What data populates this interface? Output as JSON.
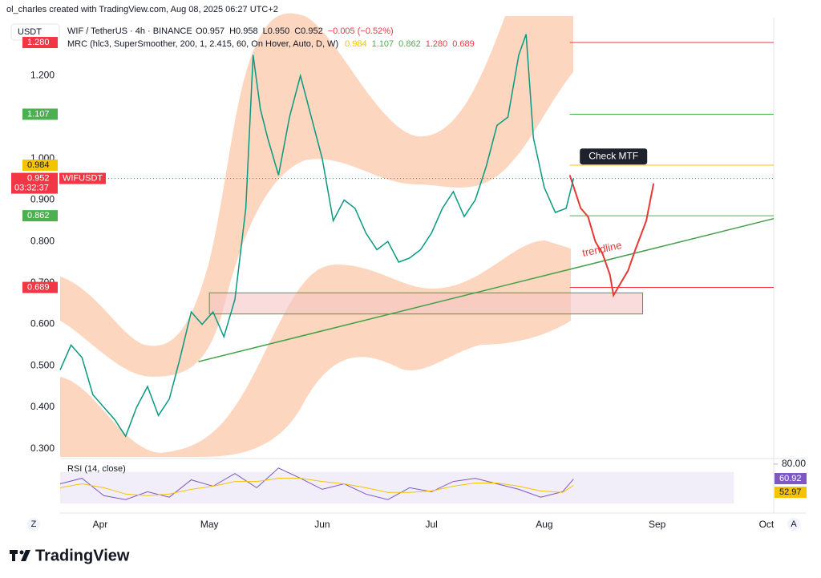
{
  "header": {
    "watermark": "ol_charles created with TradingView.com, Aug 08, 2025 06:27 UTC+2",
    "currency": "USDT",
    "symbol": "WIF / TetherUS · 4h · BINANCE",
    "ohlc": [
      "O0.957",
      "H0.958",
      "L0.950",
      "C0.952",
      "−0.005 (−0.52%)"
    ],
    "indicator": "MRC (hlc3, SuperSmoother, 200, 1, 2.415, 60, On Hover, Auto, D, W)",
    "indicator_values": [
      "0.984",
      "1.107",
      "0.862",
      "1.280",
      "0.689"
    ]
  },
  "chart_data": {
    "type": "line",
    "xlim": [
      0,
      196
    ],
    "xticks": [
      {
        "value": 11,
        "label": "Apr"
      },
      {
        "value": 41,
        "label": "May"
      },
      {
        "value": 72,
        "label": "Jun"
      },
      {
        "value": 102,
        "label": "Jul"
      },
      {
        "value": 133,
        "label": "Aug"
      },
      {
        "value": 164,
        "label": "Sep"
      },
      {
        "value": 194,
        "label": "Oct"
      }
    ],
    "ylim": [
      0.28,
      1.34
    ],
    "yticks": [
      {
        "value": 0.3,
        "label": "0.300"
      },
      {
        "value": 0.4,
        "label": "0.400"
      },
      {
        "value": 0.5,
        "label": "0.500"
      },
      {
        "value": 0.6,
        "label": "0.600"
      },
      {
        "value": 0.7,
        "label": "0.700"
      },
      {
        "value": 0.8,
        "label": "0.800"
      },
      {
        "value": 0.9,
        "label": "0.900"
      },
      {
        "value": 1.0,
        "label": "1.000"
      },
      {
        "value": 1.2,
        "label": "1.200"
      }
    ],
    "series": [
      {
        "name": "WIFUSDT",
        "color": "#089981",
        "x": [
          0,
          3,
          6,
          9,
          12,
          15,
          18,
          21,
          24,
          27,
          30,
          33,
          36,
          39,
          42,
          45,
          48,
          51,
          53,
          55,
          57,
          60,
          63,
          66,
          69,
          72,
          75,
          78,
          81,
          84,
          87,
          90,
          93,
          96,
          99,
          102,
          105,
          108,
          111,
          114,
          117,
          120,
          123,
          126,
          128,
          130,
          133,
          136,
          139,
          141
        ],
        "values": [
          0.49,
          0.55,
          0.52,
          0.43,
          0.4,
          0.37,
          0.33,
          0.4,
          0.45,
          0.38,
          0.42,
          0.52,
          0.63,
          0.6,
          0.63,
          0.57,
          0.66,
          0.88,
          1.25,
          1.12,
          1.05,
          0.96,
          1.1,
          1.2,
          1.1,
          1.0,
          0.85,
          0.9,
          0.88,
          0.82,
          0.78,
          0.8,
          0.75,
          0.76,
          0.78,
          0.82,
          0.88,
          0.92,
          0.86,
          0.9,
          0.98,
          1.08,
          1.1,
          1.25,
          1.3,
          1.05,
          0.93,
          0.87,
          0.88,
          0.952
        ]
      }
    ],
    "last_price": {
      "value": 0.952,
      "label": "0.952",
      "countdown": "03:32:37",
      "color": "#f23645"
    },
    "levels": [
      {
        "value": 1.28,
        "label": "1.280",
        "color": "#f23645"
      },
      {
        "value": 1.107,
        "label": "1.107",
        "color": "#4caf50"
      },
      {
        "value": 0.984,
        "label": "0.984",
        "color": "#f5c400"
      },
      {
        "value": 0.862,
        "label": "0.862",
        "color": "#4caf50"
      },
      {
        "value": 0.689,
        "label": "0.689",
        "color": "#f23645"
      }
    ],
    "level_start": 140,
    "zone": {
      "x": [
        41,
        160
      ],
      "values": [
        0.676,
        0.625
      ],
      "color": "#f7c5c5"
    },
    "trendline": {
      "name": "trendline",
      "color": "#43a047",
      "x": [
        38,
        196
      ],
      "values": [
        0.51,
        0.855
      ]
    },
    "projection": {
      "color": "#e53935",
      "x": [
        140,
        143,
        145,
        147,
        149,
        151,
        152,
        154,
        156,
        158,
        161,
        163
      ],
      "values": [
        0.96,
        0.88,
        0.86,
        0.8,
        0.77,
        0.72,
        0.67,
        0.7,
        0.73,
        0.78,
        0.85,
        0.94
      ]
    },
    "annotation": {
      "text": "Check MTF",
      "x": 152,
      "value": 1.005
    },
    "rsi": {
      "title": "RSI (14, close)",
      "ylim": [
        23,
        84
      ],
      "yticks": [
        {
          "value": 80,
          "label": "80.00"
        }
      ],
      "series": [
        {
          "color": "#7e57c2",
          "x": [
            0,
            6,
            12,
            18,
            24,
            30,
            36,
            42,
            48,
            54,
            60,
            66,
            72,
            78,
            84,
            90,
            96,
            102,
            108,
            114,
            120,
            126,
            132,
            138,
            141
          ],
          "values": [
            55,
            62,
            40,
            35,
            45,
            38,
            60,
            52,
            68,
            50,
            75,
            62,
            48,
            55,
            42,
            35,
            50,
            45,
            58,
            62,
            55,
            48,
            38,
            45,
            60.92
          ]
        },
        {
          "color": "#f5c400",
          "x": [
            0,
            6,
            12,
            18,
            24,
            30,
            36,
            42,
            48,
            54,
            60,
            66,
            72,
            78,
            84,
            90,
            96,
            102,
            108,
            114,
            120,
            126,
            132,
            138,
            141
          ],
          "values": [
            50,
            55,
            50,
            42,
            40,
            42,
            48,
            52,
            58,
            58,
            62,
            62,
            58,
            55,
            50,
            44,
            44,
            46,
            52,
            56,
            56,
            52,
            46,
            44,
            52.97
          ]
        }
      ]
    }
  },
  "footer": {
    "brand": "TradingView"
  }
}
